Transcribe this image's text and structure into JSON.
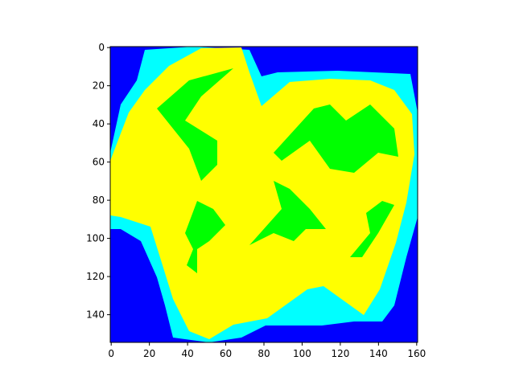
{
  "chart_data": {
    "type": "image",
    "xlim": [
      -0.5,
      160.5
    ],
    "ylim": [
      154.5,
      -0.5
    ],
    "xticks": [
      0,
      20,
      40,
      60,
      80,
      100,
      120,
      140,
      160
    ],
    "yticks": [
      0,
      20,
      40,
      60,
      80,
      100,
      120,
      140
    ]
  }
}
